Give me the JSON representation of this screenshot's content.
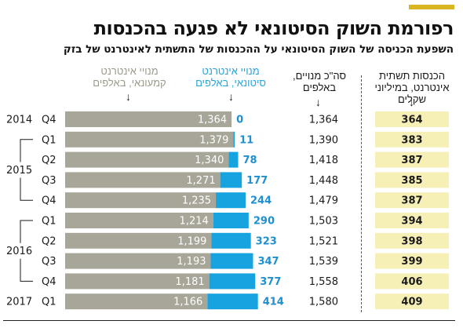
{
  "header": {
    "title": "רפורמת השוק הסיטונאי לא פגעה בהכנסות",
    "subtitle": "השפעת הכניסה של השוק הסיטונאי על ההכנסות של התשתית לאינטרנט של בזק"
  },
  "columns": {
    "commercial": [
      "מנויי אינטרנט",
      "קמעונאי, באלפים"
    ],
    "wholesale": [
      "מנויי אינטרנט",
      "סיטונאי, באלפים"
    ],
    "total": [
      "סה\"כ מנויים,",
      "באלפים"
    ],
    "revenue": [
      "הכנסות תשתית",
      "אינטרנט, במיליוני",
      "שקלים"
    ]
  },
  "colors": {
    "commercial": "#a8a698",
    "wholesale": "#16a3e0",
    "wholesale_text": "#1f8fd0",
    "revenue_box": "#f6efb6",
    "accent": "#d9b521"
  },
  "chart_data": {
    "type": "bar",
    "stacked": true,
    "orientation": "horizontal",
    "categories": [
      "Q4",
      "Q1",
      "Q2",
      "Q3",
      "Q4",
      "Q1",
      "Q2",
      "Q3",
      "Q4",
      "Q1"
    ],
    "years": [
      {
        "label": "2014",
        "rows": [
          0
        ]
      },
      {
        "label": "2015",
        "rows": [
          1,
          2,
          3,
          4
        ]
      },
      {
        "label": "2016",
        "rows": [
          5,
          6,
          7,
          8
        ]
      },
      {
        "label": "2017",
        "rows": [
          9
        ]
      }
    ],
    "series": [
      {
        "name": "מנויי אינטרנט קמעונאי, באלפים",
        "values": [
          1364,
          1379,
          1340,
          1271,
          1235,
          1214,
          1199,
          1193,
          1181,
          1166
        ]
      },
      {
        "name": "מנויי אינטרנט סיטונאי, באלפים",
        "values": [
          0,
          11,
          78,
          177,
          244,
          290,
          323,
          347,
          377,
          414
        ]
      }
    ],
    "total_labels": [
      "1,364",
      "1,390",
      "1,418",
      "1,448",
      "1,479",
      "1,503",
      "1,521",
      "1,539",
      "1,558",
      "1,580"
    ],
    "revenue_labels": [
      "364",
      "383",
      "387",
      "385",
      "387",
      "394",
      "398",
      "399",
      "406",
      "409"
    ],
    "commercial_labels": [
      "1,364",
      "1,379",
      "1,340",
      "1,271",
      "1,235",
      "1,214",
      "1,199",
      "1,193",
      "1,181",
      "1,166"
    ],
    "wholesale_labels": [
      "0",
      "11",
      "78",
      "177",
      "244",
      "290",
      "323",
      "347",
      "377",
      "414"
    ]
  }
}
